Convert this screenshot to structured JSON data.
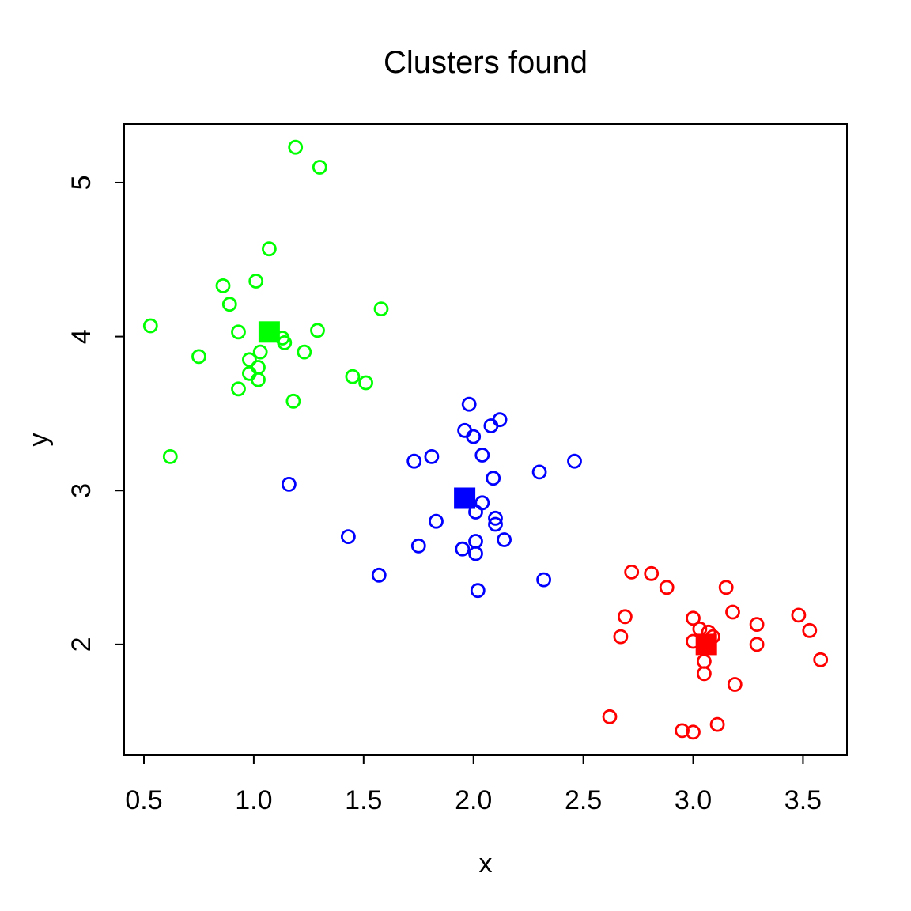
{
  "figure": {
    "background": "#ffffff",
    "foreground": "#000000"
  },
  "chart_data": {
    "type": "scatter",
    "title": "Clusters found",
    "xlabel": "x",
    "ylabel": "y",
    "xlim": [
      0.41,
      3.7
    ],
    "ylim": [
      1.28,
      5.38
    ],
    "grid": false,
    "legend": "none",
    "x_ticks": {
      "values": [
        0.5,
        1.0,
        1.5,
        2.0,
        2.5,
        3.0,
        3.5
      ],
      "labels": [
        "0.5",
        "1.0",
        "1.5",
        "2.0",
        "2.5",
        "3.0",
        "3.5"
      ]
    },
    "y_ticks": {
      "values": [
        2,
        3,
        4,
        5
      ],
      "labels": [
        "2",
        "3",
        "4",
        "5"
      ]
    },
    "series": [
      {
        "name": "cluster-green",
        "color": "#00FF00",
        "marker": "open-circle",
        "points": [
          [
            1.19,
            5.23
          ],
          [
            1.3,
            5.1
          ],
          [
            1.07,
            4.57
          ],
          [
            1.01,
            4.36
          ],
          [
            0.86,
            4.33
          ],
          [
            0.89,
            4.21
          ],
          [
            1.58,
            4.18
          ],
          [
            0.53,
            4.07
          ],
          [
            1.29,
            4.04
          ],
          [
            0.93,
            4.03
          ],
          [
            1.13,
            3.99
          ],
          [
            1.14,
            3.96
          ],
          [
            1.03,
            3.9
          ],
          [
            1.23,
            3.9
          ],
          [
            0.75,
            3.87
          ],
          [
            0.98,
            3.85
          ],
          [
            1.02,
            3.8
          ],
          [
            0.98,
            3.76
          ],
          [
            1.45,
            3.74
          ],
          [
            1.02,
            3.72
          ],
          [
            1.51,
            3.7
          ],
          [
            0.93,
            3.66
          ],
          [
            1.18,
            3.58
          ],
          [
            0.62,
            3.22
          ]
        ]
      },
      {
        "name": "cluster-blue",
        "color": "#0000FF",
        "marker": "open-circle",
        "points": [
          [
            1.98,
            3.56
          ],
          [
            2.12,
            3.46
          ],
          [
            2.08,
            3.42
          ],
          [
            1.96,
            3.39
          ],
          [
            2.0,
            3.35
          ],
          [
            2.04,
            3.23
          ],
          [
            1.81,
            3.22
          ],
          [
            1.73,
            3.19
          ],
          [
            2.46,
            3.19
          ],
          [
            2.3,
            3.12
          ],
          [
            2.09,
            3.08
          ],
          [
            1.16,
            3.04
          ],
          [
            2.04,
            2.92
          ],
          [
            2.01,
            2.86
          ],
          [
            2.1,
            2.82
          ],
          [
            1.83,
            2.8
          ],
          [
            2.1,
            2.78
          ],
          [
            1.43,
            2.7
          ],
          [
            2.14,
            2.68
          ],
          [
            2.01,
            2.67
          ],
          [
            1.75,
            2.64
          ],
          [
            1.95,
            2.62
          ],
          [
            2.01,
            2.59
          ],
          [
            1.57,
            2.45
          ],
          [
            2.32,
            2.42
          ],
          [
            2.02,
            2.35
          ]
        ]
      },
      {
        "name": "cluster-red",
        "color": "#FF0000",
        "marker": "open-circle",
        "points": [
          [
            2.72,
            2.47
          ],
          [
            2.81,
            2.46
          ],
          [
            2.88,
            2.37
          ],
          [
            3.15,
            2.37
          ],
          [
            3.18,
            2.21
          ],
          [
            2.69,
            2.18
          ],
          [
            3.0,
            2.17
          ],
          [
            3.48,
            2.19
          ],
          [
            3.29,
            2.13
          ],
          [
            3.03,
            2.1
          ],
          [
            3.53,
            2.09
          ],
          [
            3.07,
            2.08
          ],
          [
            2.67,
            2.05
          ],
          [
            3.09,
            2.05
          ],
          [
            3.0,
            2.02
          ],
          [
            3.29,
            2.0
          ],
          [
            3.58,
            1.9
          ],
          [
            3.05,
            1.89
          ],
          [
            3.05,
            1.81
          ],
          [
            3.19,
            1.74
          ],
          [
            2.62,
            1.53
          ],
          [
            3.11,
            1.48
          ],
          [
            2.95,
            1.44
          ],
          [
            3.0,
            1.43
          ]
        ]
      }
    ],
    "centers": [
      {
        "name": "centroid-green",
        "color": "#00FF00",
        "marker": "filled-square",
        "x": 1.07,
        "y": 4.03
      },
      {
        "name": "centroid-blue",
        "color": "#0000FF",
        "marker": "filled-square",
        "x": 1.96,
        "y": 2.95
      },
      {
        "name": "centroid-red",
        "color": "#FF0000",
        "marker": "filled-square",
        "x": 3.06,
        "y": 2.0
      }
    ]
  }
}
